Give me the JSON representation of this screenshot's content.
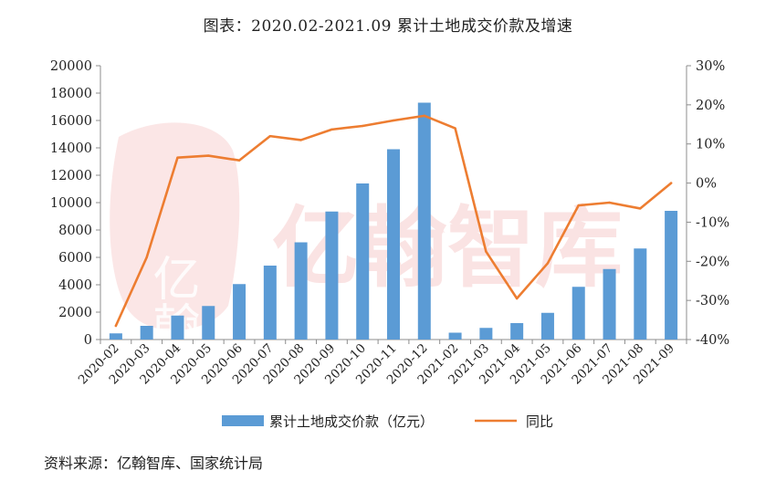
{
  "title": "图表：2020.02-2021.09 累计土地成交价款及增速",
  "source": "资料来源：亿翰智库、国家统计局",
  "watermark": {
    "text": "亿翰智库",
    "logo_text": "亿翰"
  },
  "colors": {
    "bar": "#5B9BD5",
    "line": "#ED7D31",
    "axis": "#8c8c8c",
    "text": "#222222",
    "watermark": "#f7d2d2"
  },
  "chart_data": {
    "type": "bar",
    "title": "图表：2020.02-2021.09 累计土地成交价款及增速",
    "categories": [
      "2020-02",
      "2020-03",
      "2020-04",
      "2020-05",
      "2020-06",
      "2020-07",
      "2020-08",
      "2020-09",
      "2020-10",
      "2020-11",
      "2020-12",
      "2021-02",
      "2021-03",
      "2021-04",
      "2021-05",
      "2021-06",
      "2021-07",
      "2021-08",
      "2021-09"
    ],
    "series": [
      {
        "name": "累计土地成交价款（亿元）",
        "type": "bar",
        "axis": "left",
        "values": [
          450,
          1000,
          1750,
          2450,
          4050,
          5400,
          7100,
          9350,
          11400,
          13900,
          17300,
          500,
          850,
          1200,
          1950,
          3850,
          5150,
          6650,
          9400
        ]
      },
      {
        "name": "同比",
        "type": "line",
        "axis": "right",
        "unit": "%",
        "values": [
          -36.5,
          -19,
          6.5,
          7,
          5.8,
          12,
          11,
          13.7,
          14.6,
          16,
          17.2,
          14,
          -17.5,
          -29.5,
          -20.5,
          -5.7,
          -5,
          -6.5,
          0
        ]
      }
    ],
    "y_left": {
      "min": 0,
      "max": 20000,
      "ticks": [
        0,
        2000,
        4000,
        6000,
        8000,
        10000,
        12000,
        14000,
        16000,
        18000,
        20000
      ]
    },
    "y_right": {
      "min": -40,
      "max": 30,
      "ticks": [
        -40,
        -30,
        -20,
        -10,
        0,
        10,
        20,
        30
      ],
      "tick_labels": [
        "-40%",
        "-30%",
        "-20%",
        "-10%",
        "0%",
        "10%",
        "20%",
        "30%"
      ]
    },
    "legend_position": "bottom-center",
    "grid": false
  }
}
